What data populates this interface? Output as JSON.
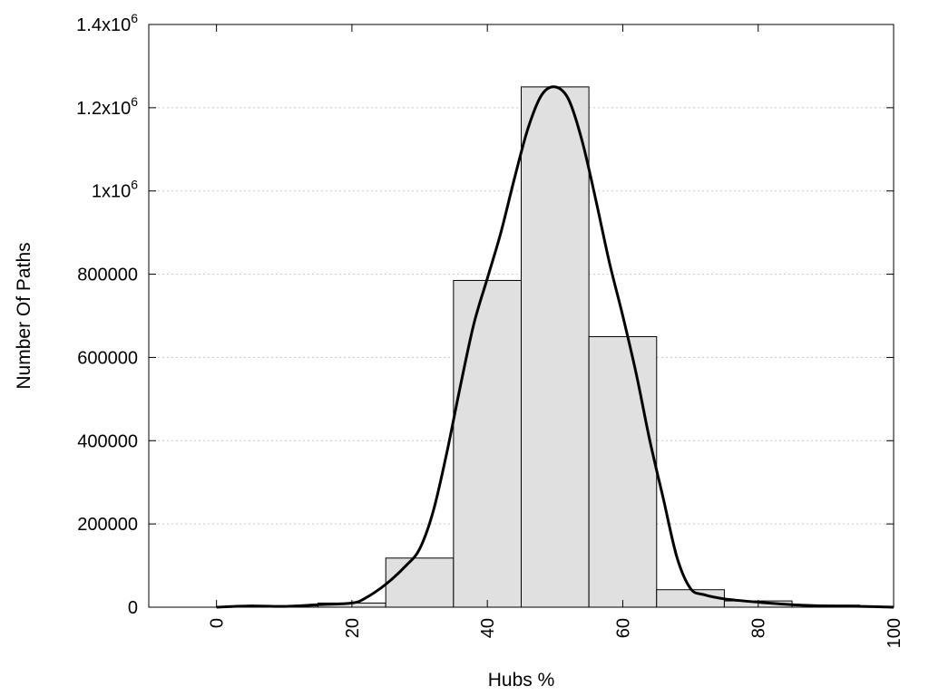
{
  "chart_data": {
    "type": "bar",
    "xlabel": "Hubs %",
    "ylabel": "Number Of Paths",
    "xlim": [
      -10,
      100
    ],
    "ylim": [
      0,
      1400000
    ],
    "grid": "horizontal-dotted",
    "bar_width": 10,
    "bars": {
      "x": [
        0,
        10,
        20,
        30,
        40,
        50,
        60,
        70,
        80,
        90
      ],
      "values": [
        0,
        3000,
        10000,
        118000,
        785000,
        1250000,
        650000,
        42000,
        15000,
        5000
      ]
    },
    "curve": {
      "x": [
        0,
        5,
        10,
        15,
        20,
        22,
        25,
        28,
        30,
        32,
        34,
        36,
        38,
        40,
        42,
        44,
        46,
        48,
        50,
        52,
        54,
        56,
        58,
        60,
        62,
        64,
        66,
        68,
        70,
        72,
        75,
        80,
        85,
        90,
        95,
        100
      ],
      "y": [
        0,
        3000,
        2000,
        6000,
        10000,
        22000,
        55000,
        100000,
        140000,
        230000,
        370000,
        530000,
        680000,
        790000,
        900000,
        1030000,
        1150000,
        1230000,
        1250000,
        1220000,
        1120000,
        980000,
        830000,
        700000,
        560000,
        400000,
        260000,
        120000,
        45000,
        30000,
        20000,
        12000,
        6000,
        3000,
        2000,
        0
      ]
    },
    "x_ticks": [
      "0",
      "20",
      "40",
      "60",
      "80",
      "100"
    ],
    "y_ticks": [
      {
        "mantissa": "0",
        "exp": ""
      },
      {
        "mantissa": "200000",
        "exp": ""
      },
      {
        "mantissa": "400000",
        "exp": ""
      },
      {
        "mantissa": "600000",
        "exp": ""
      },
      {
        "mantissa": "800000",
        "exp": ""
      },
      {
        "mantissa": "1x10",
        "exp": "6"
      },
      {
        "mantissa": "1.2x10",
        "exp": "6"
      },
      {
        "mantissa": "1.4x10",
        "exp": "6"
      }
    ],
    "colors": {
      "bar_fill": "#e0e0e0",
      "bar_stroke": "#000000",
      "curve": "#000000",
      "grid": "#c8c8c8"
    }
  }
}
